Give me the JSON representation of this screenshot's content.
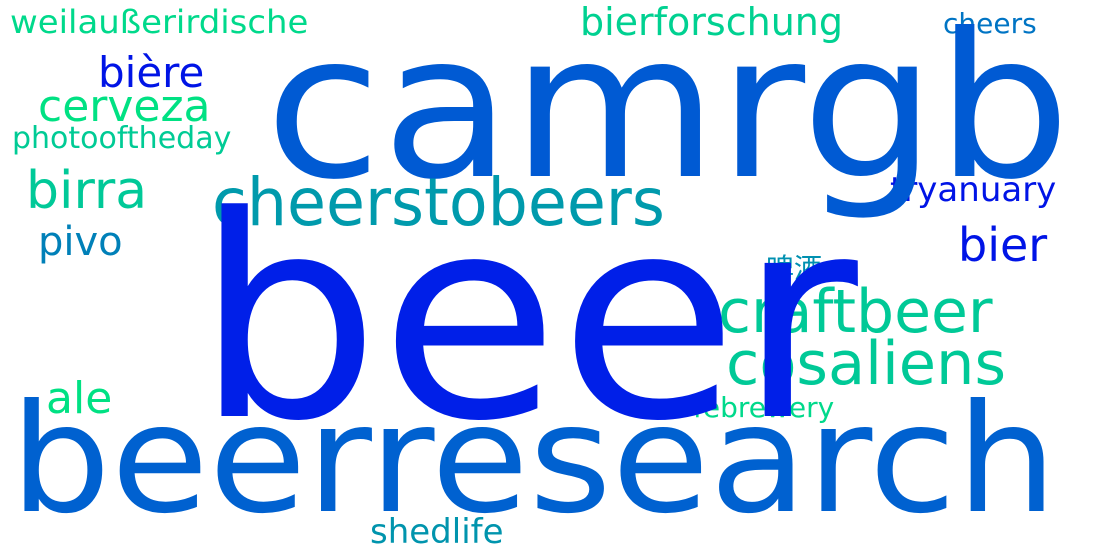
{
  "words": {
    "camrgb": {
      "text": "camrgb",
      "color": "#005ad3"
    },
    "beer": {
      "text": "beer",
      "color": "#001fe8"
    },
    "beerresearch": {
      "text": "beerresearch",
      "color": "#0061d0"
    },
    "cheerstobeers": {
      "text": "cheerstobeers",
      "color": "#009aac"
    },
    "craftbeer": {
      "text": "craftbeer",
      "color": "#00c997"
    },
    "cosaliens": {
      "text": "cosaliens",
      "color": "#00c997"
    },
    "cerveza": {
      "text": "cerveza",
      "color": "#00e183"
    },
    "birra": {
      "text": "birra",
      "color": "#00c998"
    },
    "biere": {
      "text": "bière",
      "color": "#0014e6"
    },
    "bier": {
      "text": "bier",
      "color": "#0014e6"
    },
    "pivo": {
      "text": "pivo",
      "color": "#0080b8"
    },
    "ale": {
      "text": "ale",
      "color": "#00e183"
    },
    "bierforschung": {
      "text": "bierforschung",
      "color": "#00d191"
    },
    "weilausserirdische": {
      "text": "weilaußerirdische",
      "color": "#00d98b"
    },
    "photooftheday": {
      "text": "photooftheday",
      "color": "#00cb95"
    },
    "tryanuary": {
      "text": "tryanuary",
      "color": "#0014e6"
    },
    "febrewery": {
      "text": "febrewery",
      "color": "#00d98b"
    },
    "cheers": {
      "text": "cheers",
      "color": "#0074c4"
    },
    "shedlife": {
      "text": "shedlife",
      "color": "#0094ad"
    },
    "cjk": {
      "text": "啤酒",
      "color": "#0090b0"
    }
  }
}
